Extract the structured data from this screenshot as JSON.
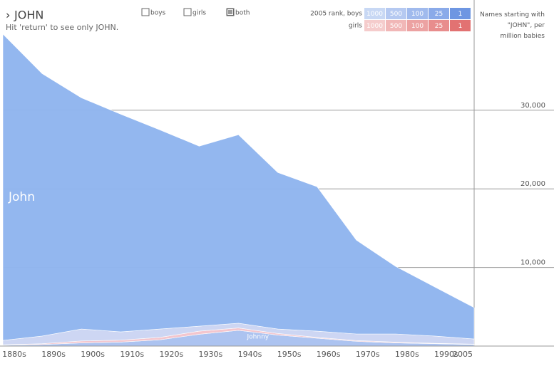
{
  "header": {
    "title": "JOHN",
    "hint": "Hit 'return' to see only JOHN."
  },
  "controls": {
    "filters": [
      "boys",
      "girls",
      "both"
    ],
    "checked": [
      false,
      false,
      true
    ]
  },
  "rank_legend": {
    "boys_label": "2005 rank, boys",
    "girls_label": "girls",
    "ranks": [
      1000,
      500,
      100,
      25,
      1
    ],
    "boys_colors": [
      "#c8d8f4",
      "#b5c9f1",
      "#a0baed",
      "#8aaae9",
      "#6e96e2"
    ],
    "girls_colors": [
      "#f5cccc",
      "#f1b7b7",
      "#eca2a2",
      "#e88d8d",
      "#e27272"
    ]
  },
  "chart_data": {
    "type": "area",
    "stacked": true,
    "y_axis_label": "Names starting with \"JOHN\", per million babies",
    "categories": [
      "1880s",
      "1890s",
      "1900s",
      "1910s",
      "1920s",
      "1930s",
      "1940s",
      "1950s",
      "1960s",
      "1970s",
      "1980s",
      "1990s",
      "2005"
    ],
    "series": [
      {
        "name": "Johnny",
        "color": "#a9c1ef",
        "values": [
          100,
          200,
          400,
          500,
          800,
          1500,
          2000,
          1400,
          1000,
          600,
          400,
          300,
          200
        ]
      },
      {
        "color": "#f3c4cc",
        "values": [
          50,
          100,
          250,
          250,
          300,
          400,
          300,
          200,
          100,
          100,
          100,
          50,
          50
        ]
      },
      {
        "color": "#cbd5f3",
        "values": [
          570,
          970,
          1520,
          1060,
          1070,
          630,
          600,
          570,
          800,
          840,
          1040,
          920,
          650
        ]
      },
      {
        "name": "John",
        "color": "#8fb5ee",
        "values": [
          38980,
          33390,
          29410,
          27690,
          25330,
          22900,
          23980,
          19910,
          18370,
          11940,
          8600,
          6240,
          3990
        ]
      }
    ],
    "ylim": [
      0,
      40400
    ],
    "yticks": [
      {
        "value": 10000,
        "label": "10,000"
      },
      {
        "value": 20000,
        "label": "20,000"
      },
      {
        "value": 30000,
        "label": "30,000"
      }
    ],
    "grid": true
  }
}
